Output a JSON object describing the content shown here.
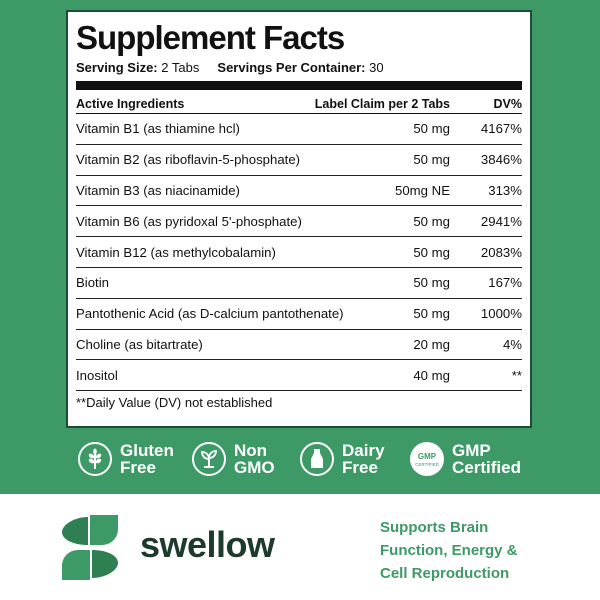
{
  "panel": {
    "title": "Supplement Facts",
    "serving_size_label": "Serving Size:",
    "serving_size_value": "2 Tabs",
    "servings_label": "Servings Per Container:",
    "servings_value": "30"
  },
  "table": {
    "headers": [
      "Active Ingredients",
      "Label Claim per 2 Tabs",
      "DV%"
    ],
    "rows": [
      [
        "Vitamin B1 (as thiamine hcl)",
        "50 mg",
        "4167%"
      ],
      [
        "Vitamin B2 (as riboflavin-5-phosphate)",
        "50 mg",
        "3846%"
      ],
      [
        "Vitamin B3 (as niacinamide)",
        "50mg NE",
        "313%"
      ],
      [
        "Vitamin B6 (as pyridoxal 5'-phosphate)",
        "50 mg",
        "2941%"
      ],
      [
        "Vitamin B12 (as methylcobalamin)",
        "50 mg",
        "2083%"
      ],
      [
        "Biotin",
        "50 mg",
        "167%"
      ],
      [
        "Pantothenic Acid (as D-calcium pantothenate)",
        "50 mg",
        "1000%"
      ],
      [
        "Choline (as bitartrate)",
        "20 mg",
        "4%"
      ],
      [
        "Inositol",
        "40 mg",
        "**"
      ]
    ],
    "footnote": "**Daily Value (DV) not established"
  },
  "badges": [
    {
      "line1": "Gluten",
      "line2": "Free",
      "icon": "wheat-icon"
    },
    {
      "line1": "Non",
      "line2": "GMO",
      "icon": "sprout-icon"
    },
    {
      "line1": "Dairy",
      "line2": "Free",
      "icon": "bottle-icon"
    },
    {
      "line1": "GMP",
      "line2": "Certified",
      "icon": "gmp-seal-icon",
      "seal_text_1": "GMP",
      "seal_text_2": "CERTIFIED"
    }
  ],
  "brand": {
    "name": "swellow",
    "tagline": [
      "Supports Brain",
      "Function, Energy &",
      "Cell Reproduction"
    ]
  },
  "colors": {
    "brand_green": "#3d9a67",
    "dark_green": "#1d4d36",
    "brand_text": "#1d3b2b"
  }
}
